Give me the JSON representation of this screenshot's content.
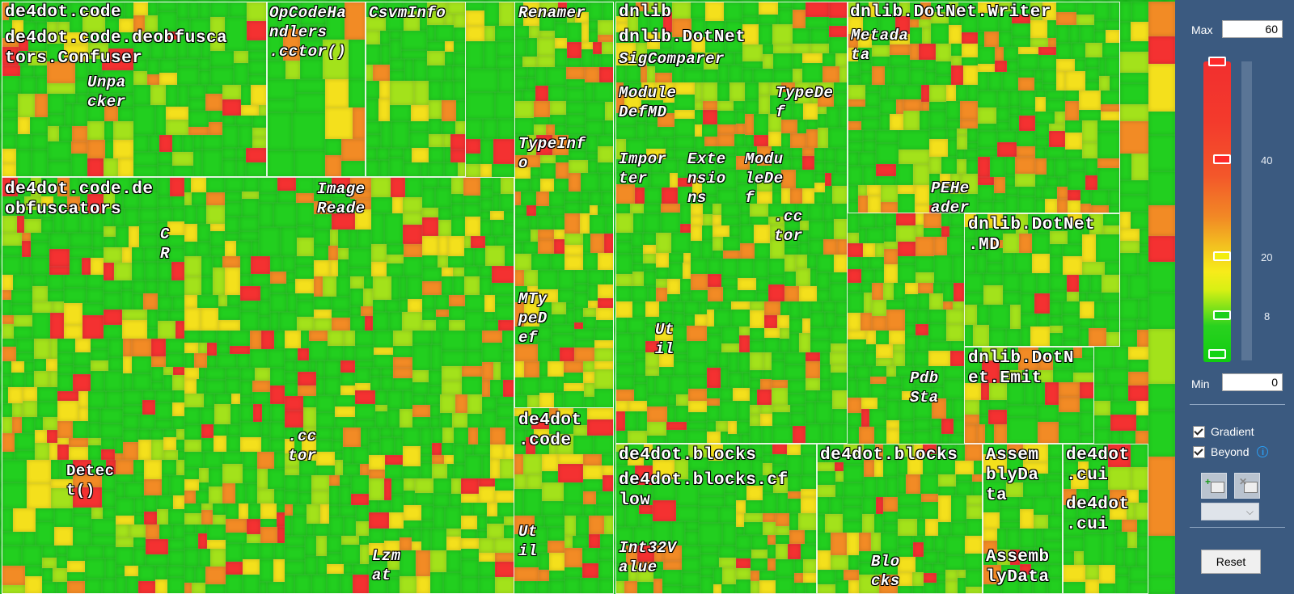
{
  "labels": {
    "r1": "de4dot.code",
    "r2": "de4dot.code.deobfusca\ntors.Confuser",
    "r3": "Unpa\ncker",
    "r4": "OpCodeHa\nndlers\n.cctor()",
    "r5": "CsvmInfo",
    "r6": "Renamer",
    "r7": "TypeInf\no",
    "r8": "de4dot.code.de\nobfuscators",
    "r9": "C\nR",
    "r10": "Image\nReade",
    "r11": "MTy\npeD\nef",
    "r12": "de4dot\n.code",
    "r13": ".cc\ntor",
    "r14": "Detec\nt()",
    "r15": "Lzm\nat",
    "r16": "Ut\nil",
    "r17": "dnlib",
    "r18": "dnlib.DotNet",
    "r19": "SigComparer",
    "r20": "Module\nDefMD",
    "r21": "TypeDe\nf",
    "r22": "Impor\nter",
    "r23": "Exte\nnsio\nns",
    "r24": "Modu\nleDe\nf",
    "r25": ".cc\ntor",
    "r26": "Ut\nil",
    "r27": "dnlib.DotNet.Writer",
    "r28": "Metada\nta",
    "r29": "PEHe\nader",
    "r30": "dnlib.DotNet\n.MD",
    "r31": "dnlib.DotN\net.Emit",
    "r32": "Pdb\nSta",
    "r33": "de4dot.blocks",
    "r34": "de4dot.blocks.cf\nlow",
    "r35": "Int32V\nalue",
    "r36": "de4dot.blocks",
    "r37": "Blo\ncks",
    "r38": "Assem\nblyDa\nta",
    "r39": "Assemb\nlyData",
    "r40": "de4dot\n.cui",
    "r41": "de4dot\n.cui"
  },
  "panel": {
    "max_label": "Max",
    "max_value": "60",
    "min_label": "Min",
    "min_value": "0",
    "tick_40": "40",
    "tick_20": "20",
    "tick_8": "8",
    "gradient_label": "Gradient",
    "beyond_label": "Beyond",
    "info_glyph": "i",
    "reset_label": "Reset",
    "combo_arrow": "⌵",
    "thumb_colors": {
      "top": "#ff2a2a",
      "t40": "#ff2a2a",
      "t20": "#f2ee10",
      "t8": "#1ccf1c",
      "bottom": "#14d414"
    }
  },
  "colors": {
    "red": "#f43131",
    "orange": "#f28b25",
    "yellow": "#f4e01c",
    "lime": "#a3e21b",
    "green": "#22cf1f",
    "panel_bg": "#3b5a80"
  }
}
